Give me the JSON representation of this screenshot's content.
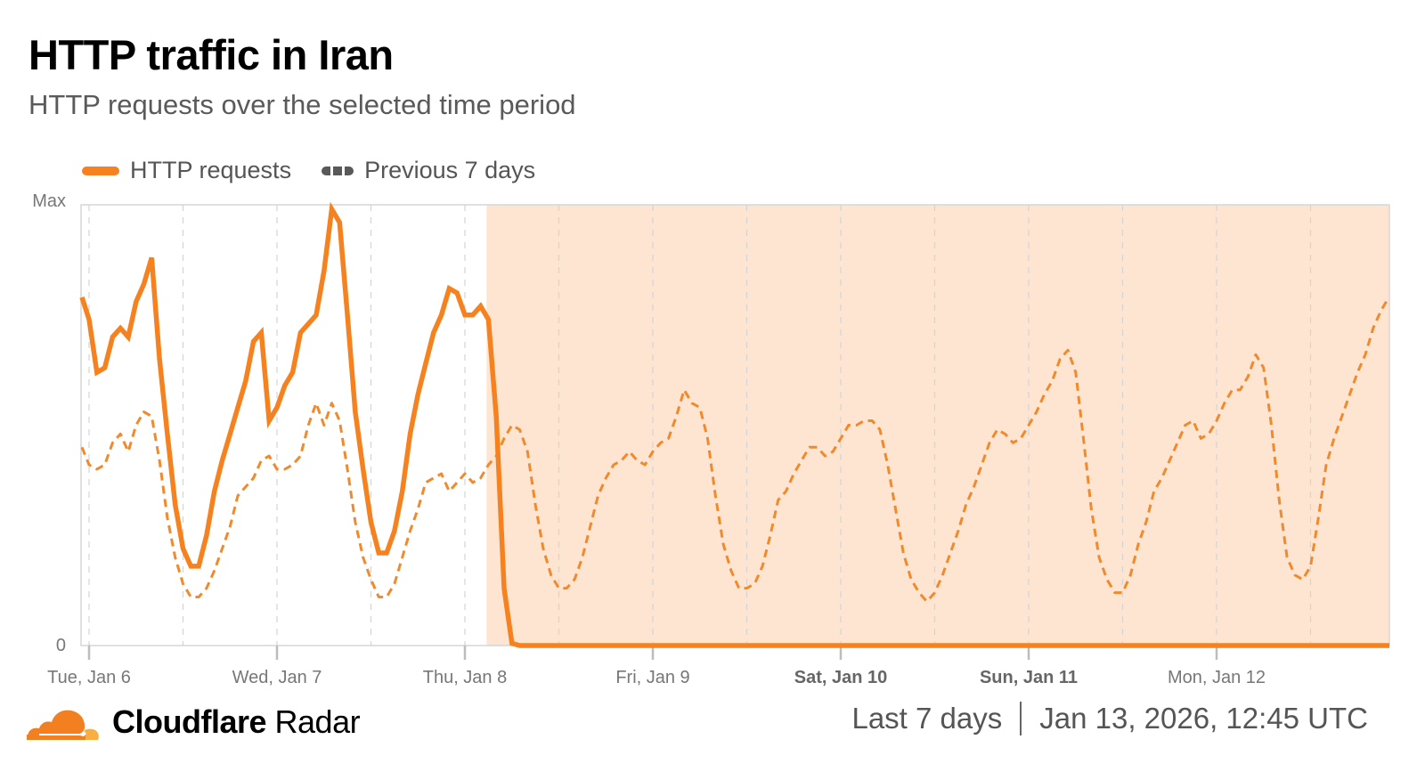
{
  "header": {
    "title": "HTTP traffic in Iran",
    "subtitle": "HTTP requests over the selected time period"
  },
  "legend": {
    "items": [
      {
        "label": "HTTP requests",
        "style": "solid",
        "color": "#f6821f"
      },
      {
        "label": "Previous 7 days",
        "style": "dashed",
        "color": "#595959"
      }
    ]
  },
  "footer": {
    "brand_bold": "Cloudflare",
    "brand_light": "Radar",
    "range": "Last 7 days",
    "timestamp": "Jan 13, 2026, 12:45 UTC"
  },
  "colors": {
    "accent": "#f6821f",
    "shade": "#fde5d2",
    "grid": "#d9d9d9",
    "axis_text": "#777777"
  },
  "chart_data": {
    "type": "line",
    "title": "HTTP traffic in Iran",
    "subtitle": "HTTP requests over the selected time period",
    "xlabel": "",
    "ylabel": "",
    "y_tick_labels": [
      "0",
      "Max"
    ],
    "ylim": [
      0,
      100
    ],
    "x_tick_labels": [
      {
        "label": "Tue, Jan 6",
        "bold": false
      },
      {
        "label": "Wed, Jan 7",
        "bold": false
      },
      {
        "label": "Thu, Jan 8",
        "bold": false
      },
      {
        "label": "Fri, Jan 9",
        "bold": false
      },
      {
        "label": "Sat, Jan 10",
        "bold": true
      },
      {
        "label": "Sun, Jan 11",
        "bold": true
      },
      {
        "label": "Mon, Jan 12",
        "bold": false
      }
    ],
    "x_unit": "hours since Tue Jan 6 00:00 UTC",
    "shaded_region": {
      "start_hours": 51,
      "end_hours": 172,
      "note": "outage / annotation period highlighted"
    },
    "grid": true,
    "legend_position": "top-left",
    "series": [
      {
        "name": "HTTP requests",
        "style": "solid",
        "points": [
          [
            -1,
            79
          ],
          [
            0,
            74
          ],
          [
            1,
            62
          ],
          [
            2,
            63
          ],
          [
            3,
            70
          ],
          [
            4,
            72
          ],
          [
            5,
            70
          ],
          [
            6,
            78
          ],
          [
            7,
            82
          ],
          [
            8,
            88
          ],
          [
            9,
            65
          ],
          [
            10,
            48
          ],
          [
            11,
            32
          ],
          [
            12,
            22
          ],
          [
            13,
            18
          ],
          [
            14,
            18
          ],
          [
            15,
            25
          ],
          [
            16,
            35
          ],
          [
            17,
            42
          ],
          [
            18,
            48
          ],
          [
            19,
            54
          ],
          [
            20,
            60
          ],
          [
            21,
            69
          ],
          [
            22,
            71
          ],
          [
            23,
            51
          ],
          [
            24,
            54
          ],
          [
            25,
            59
          ],
          [
            26,
            62
          ],
          [
            27,
            71
          ],
          [
            28,
            73
          ],
          [
            29,
            75
          ],
          [
            30,
            85
          ],
          [
            31,
            99
          ],
          [
            32,
            96
          ],
          [
            33,
            75
          ],
          [
            34,
            53
          ],
          [
            35,
            40
          ],
          [
            36,
            28
          ],
          [
            37,
            21
          ],
          [
            38,
            21
          ],
          [
            39,
            26
          ],
          [
            40,
            35
          ],
          [
            41,
            48
          ],
          [
            42,
            57
          ],
          [
            43,
            64
          ],
          [
            44,
            71
          ],
          [
            45,
            75
          ],
          [
            46,
            81
          ],
          [
            47,
            80
          ],
          [
            48,
            75
          ],
          [
            49,
            75
          ],
          [
            50,
            77
          ],
          [
            51,
            74
          ],
          [
            52,
            52
          ],
          [
            53,
            13
          ],
          [
            54,
            0.5
          ],
          [
            55,
            0
          ],
          [
            60,
            0
          ],
          [
            80,
            0
          ],
          [
            100,
            0
          ],
          [
            120,
            0
          ],
          [
            140,
            0
          ],
          [
            160,
            0
          ],
          [
            172,
            0
          ]
        ]
      },
      {
        "name": "Previous 7 days",
        "style": "dashed",
        "points": [
          [
            -1,
            45
          ],
          [
            0,
            41
          ],
          [
            1,
            40
          ],
          [
            2,
            41
          ],
          [
            3,
            46
          ],
          [
            4,
            48
          ],
          [
            5,
            44
          ],
          [
            6,
            50
          ],
          [
            7,
            53
          ],
          [
            8,
            52
          ],
          [
            9,
            42
          ],
          [
            10,
            29
          ],
          [
            11,
            20
          ],
          [
            12,
            14
          ],
          [
            13,
            11
          ],
          [
            14,
            11
          ],
          [
            15,
            13
          ],
          [
            16,
            17
          ],
          [
            17,
            22
          ],
          [
            18,
            27
          ],
          [
            19,
            34
          ],
          [
            20,
            36
          ],
          [
            21,
            38
          ],
          [
            22,
            42
          ],
          [
            23,
            43
          ],
          [
            24,
            40
          ],
          [
            25,
            40
          ],
          [
            26,
            41
          ],
          [
            27,
            43
          ],
          [
            28,
            50
          ],
          [
            29,
            55
          ],
          [
            30,
            50
          ],
          [
            31,
            55
          ],
          [
            32,
            51
          ],
          [
            33,
            40
          ],
          [
            34,
            28
          ],
          [
            35,
            20
          ],
          [
            36,
            15
          ],
          [
            37,
            11
          ],
          [
            38,
            11
          ],
          [
            39,
            14
          ],
          [
            40,
            20
          ],
          [
            41,
            26
          ],
          [
            42,
            31
          ],
          [
            43,
            37
          ],
          [
            44,
            38
          ],
          [
            45,
            39
          ],
          [
            46,
            35
          ],
          [
            47,
            37
          ],
          [
            48,
            39
          ],
          [
            49,
            37
          ],
          [
            50,
            38
          ],
          [
            51,
            41
          ],
          [
            52,
            43
          ],
          [
            53,
            47
          ],
          [
            54,
            50
          ],
          [
            55,
            49
          ],
          [
            56,
            44
          ],
          [
            57,
            32
          ],
          [
            58,
            22
          ],
          [
            59,
            16
          ],
          [
            60,
            13
          ],
          [
            61,
            13
          ],
          [
            62,
            15
          ],
          [
            63,
            20
          ],
          [
            64,
            27
          ],
          [
            65,
            34
          ],
          [
            66,
            38
          ],
          [
            67,
            41
          ],
          [
            68,
            42
          ],
          [
            69,
            44
          ],
          [
            70,
            42
          ],
          [
            71,
            41
          ],
          [
            72,
            44
          ],
          [
            73,
            46
          ],
          [
            74,
            47
          ],
          [
            75,
            52
          ],
          [
            76,
            58
          ],
          [
            77,
            55
          ],
          [
            78,
            54
          ],
          [
            79,
            47
          ],
          [
            80,
            34
          ],
          [
            81,
            23
          ],
          [
            82,
            17
          ],
          [
            83,
            13
          ],
          [
            84,
            13
          ],
          [
            85,
            14
          ],
          [
            86,
            18
          ],
          [
            87,
            25
          ],
          [
            88,
            33
          ],
          [
            89,
            35
          ],
          [
            90,
            39
          ],
          [
            91,
            42
          ],
          [
            92,
            45
          ],
          [
            93,
            45
          ],
          [
            94,
            43
          ],
          [
            95,
            44
          ],
          [
            96,
            47
          ],
          [
            97,
            50
          ],
          [
            98,
            50
          ],
          [
            99,
            51
          ],
          [
            100,
            51
          ],
          [
            101,
            49
          ],
          [
            102,
            41
          ],
          [
            103,
            31
          ],
          [
            104,
            21
          ],
          [
            105,
            15
          ],
          [
            106,
            12
          ],
          [
            107,
            10
          ],
          [
            108,
            12
          ],
          [
            109,
            16
          ],
          [
            110,
            21
          ],
          [
            111,
            26
          ],
          [
            112,
            32
          ],
          [
            113,
            36
          ],
          [
            114,
            41
          ],
          [
            115,
            46
          ],
          [
            116,
            49
          ],
          [
            117,
            48
          ],
          [
            118,
            46
          ],
          [
            119,
            47
          ],
          [
            120,
            50
          ],
          [
            121,
            53
          ],
          [
            122,
            57
          ],
          [
            123,
            60
          ],
          [
            124,
            65
          ],
          [
            125,
            67
          ],
          [
            126,
            62
          ],
          [
            127,
            47
          ],
          [
            128,
            31
          ],
          [
            129,
            20
          ],
          [
            130,
            15
          ],
          [
            131,
            12
          ],
          [
            132,
            12
          ],
          [
            133,
            16
          ],
          [
            134,
            23
          ],
          [
            135,
            28
          ],
          [
            136,
            35
          ],
          [
            137,
            38
          ],
          [
            138,
            42
          ],
          [
            139,
            46
          ],
          [
            140,
            50
          ],
          [
            141,
            51
          ],
          [
            142,
            47
          ],
          [
            143,
            48
          ],
          [
            144,
            51
          ],
          [
            145,
            55
          ],
          [
            146,
            58
          ],
          [
            147,
            58
          ],
          [
            148,
            61
          ],
          [
            149,
            66
          ],
          [
            150,
            63
          ],
          [
            151,
            50
          ],
          [
            152,
            33
          ],
          [
            153,
            20
          ],
          [
            154,
            16
          ],
          [
            155,
            15
          ],
          [
            156,
            18
          ],
          [
            157,
            29
          ],
          [
            158,
            41
          ],
          [
            159,
            47
          ],
          [
            160,
            52
          ],
          [
            161,
            57
          ],
          [
            162,
            62
          ],
          [
            163,
            66
          ],
          [
            164,
            72
          ],
          [
            165,
            76
          ],
          [
            166,
            79
          ]
        ]
      }
    ]
  }
}
